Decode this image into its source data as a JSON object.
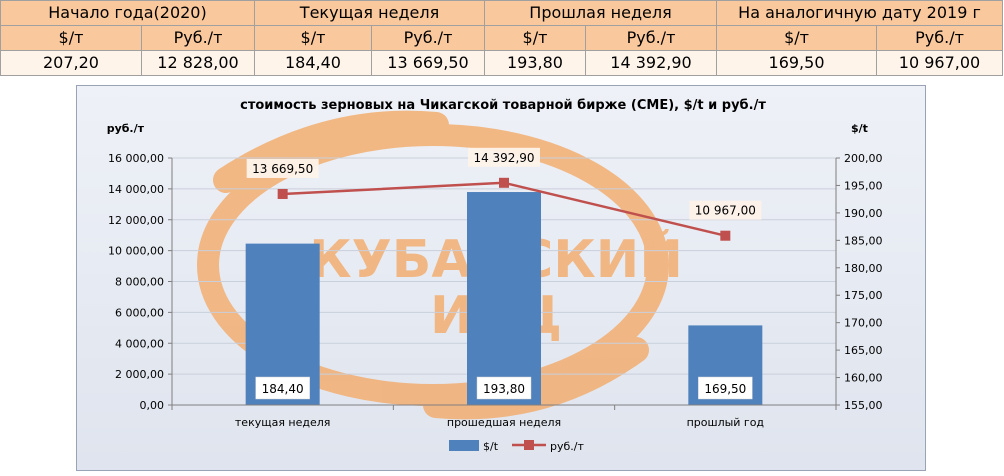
{
  "table": {
    "groups": [
      "Начало года(2020)",
      "Текущая неделя",
      "Прошлая неделя",
      "На аналогичную дату 2019 г"
    ],
    "units": [
      "$/т",
      "Руб./т",
      "$/т",
      "Руб./т",
      "$/т",
      "Руб./т",
      "$/т",
      "Руб./т"
    ],
    "values": [
      "207,20",
      "12 828,00",
      "184,40",
      "13 669,50",
      "193,80",
      "14 392,90",
      "169,50",
      "10 967,00"
    ]
  },
  "chart_data": {
    "type": "bar",
    "title": "стоимость зерновых на Чикагской товарной бирже (CME), $/t и руб./т",
    "categories": [
      "текущая неделя",
      "прошедшая неделя",
      "прошлый год"
    ],
    "series": [
      {
        "name": "$/t",
        "type": "bar",
        "axis": "right",
        "values": [
          184.4,
          193.8,
          169.5
        ],
        "labels": [
          "184,40",
          "193,80",
          "169,50"
        ]
      },
      {
        "name": "руб./т",
        "type": "line",
        "axis": "left",
        "values": [
          13669.5,
          14392.9,
          10967.0
        ],
        "labels": [
          "13 669,50",
          "14 392,90",
          "10 967,00"
        ]
      }
    ],
    "left_axis": {
      "label": "руб./т",
      "ylim": [
        0,
        16000
      ],
      "ticks": [
        "0,00",
        "2 000,00",
        "4 000,00",
        "6 000,00",
        "8 000,00",
        "10 000,00",
        "12 000,00",
        "14 000,00",
        "16 000,00"
      ]
    },
    "right_axis": {
      "label": "$/t",
      "ylim": [
        155,
        200
      ],
      "ticks": [
        "155,00",
        "160,00",
        "165,00",
        "170,00",
        "175,00",
        "180,00",
        "185,00",
        "190,00",
        "195,00",
        "200,00"
      ]
    },
    "grid": true,
    "legend": "bottom",
    "colors": {
      "bar": "#4f81bd",
      "line": "#c0504d",
      "watermark": "#f4a65f"
    }
  },
  "watermark": {
    "line1": "КУБАНСКИЙ",
    "line2": "ИАЦ"
  }
}
